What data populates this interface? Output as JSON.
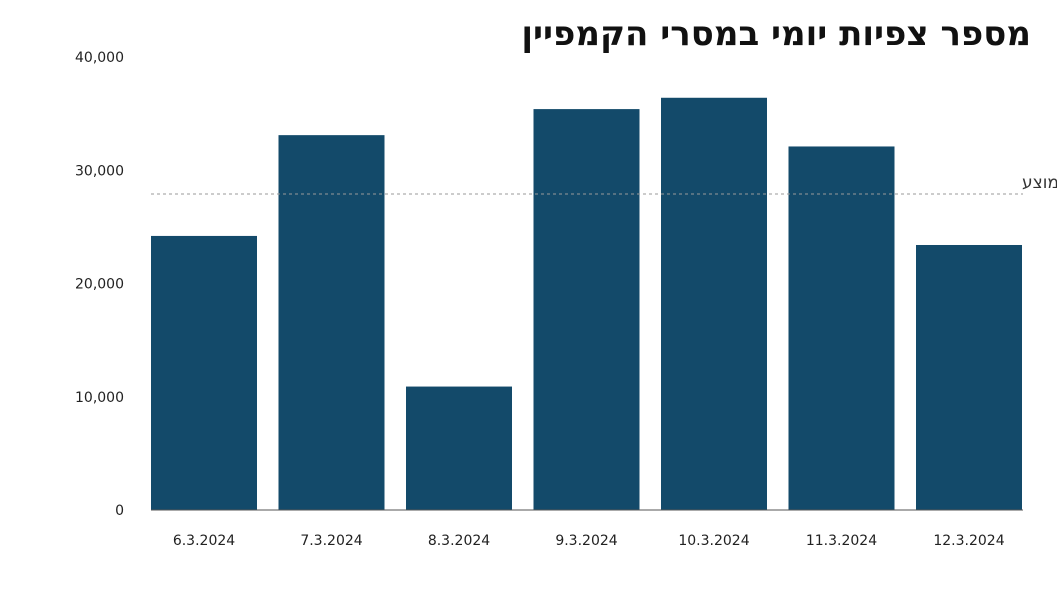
{
  "chart_data": {
    "type": "bar",
    "title": "מספר צפיות יומי במסרי הקמפיין",
    "categories": [
      "6.3.2024",
      "7.3.2024",
      "8.3.2024",
      "9.3.2024",
      "10.3.2024",
      "11.3.2024",
      "12.3.2024"
    ],
    "values": [
      24200,
      33100,
      10900,
      35400,
      36400,
      32100,
      23400
    ],
    "ylim": [
      0,
      40000
    ],
    "yticks": [
      0,
      10000,
      20000,
      30000,
      40000
    ],
    "ytick_labels": [
      "0",
      "10,000",
      "20,000",
      "30,000",
      "40,000"
    ],
    "reference_line": {
      "label": "ממוצע",
      "value": 27900,
      "style": "dashed"
    },
    "grid": false,
    "bar_color": "#134a6a",
    "reference_color": "#999999"
  }
}
